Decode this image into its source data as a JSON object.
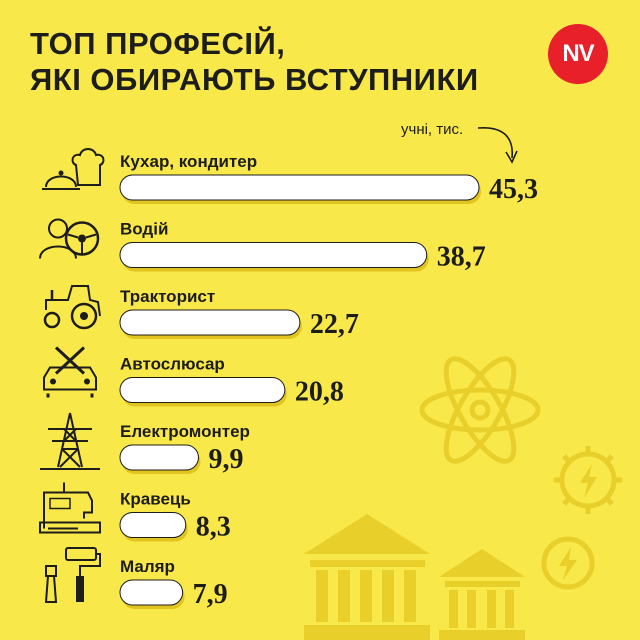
{
  "header": {
    "title_line1": "ТОП ПРОФЕСІЙ,",
    "title_line2": "ЯКІ ОБИРАЮТЬ ВСТУПНИКИ",
    "logo_text": "NV"
  },
  "colors": {
    "background": "#f9e84a",
    "bar_fill": "#ffffff",
    "bar_shadow": "#e2c421",
    "text": "#1d1d1b",
    "logo_red": "#e8202a",
    "decor": "#e8cf2a"
  },
  "chart_data": {
    "type": "bar",
    "orientation": "horizontal",
    "unit_label": "учні, тис.",
    "categories": [
      "Кухар, кондитер",
      "Водій",
      "Тракторист",
      "Автослюсар",
      "Електромонтер",
      "Кравець",
      "Маляр"
    ],
    "values": [
      45.3,
      38.7,
      22.7,
      20.8,
      9.9,
      8.3,
      7.9
    ],
    "value_labels": [
      "45,3",
      "38,7",
      "22,7",
      "20,8",
      "9,9",
      "8,3",
      "7,9"
    ],
    "icons": [
      "chef-icon",
      "driver-icon",
      "tractor-icon",
      "car-repair-icon",
      "power-tower-icon",
      "sewing-machine-icon",
      "paint-roller-icon"
    ],
    "grid": false,
    "legend": "none"
  }
}
